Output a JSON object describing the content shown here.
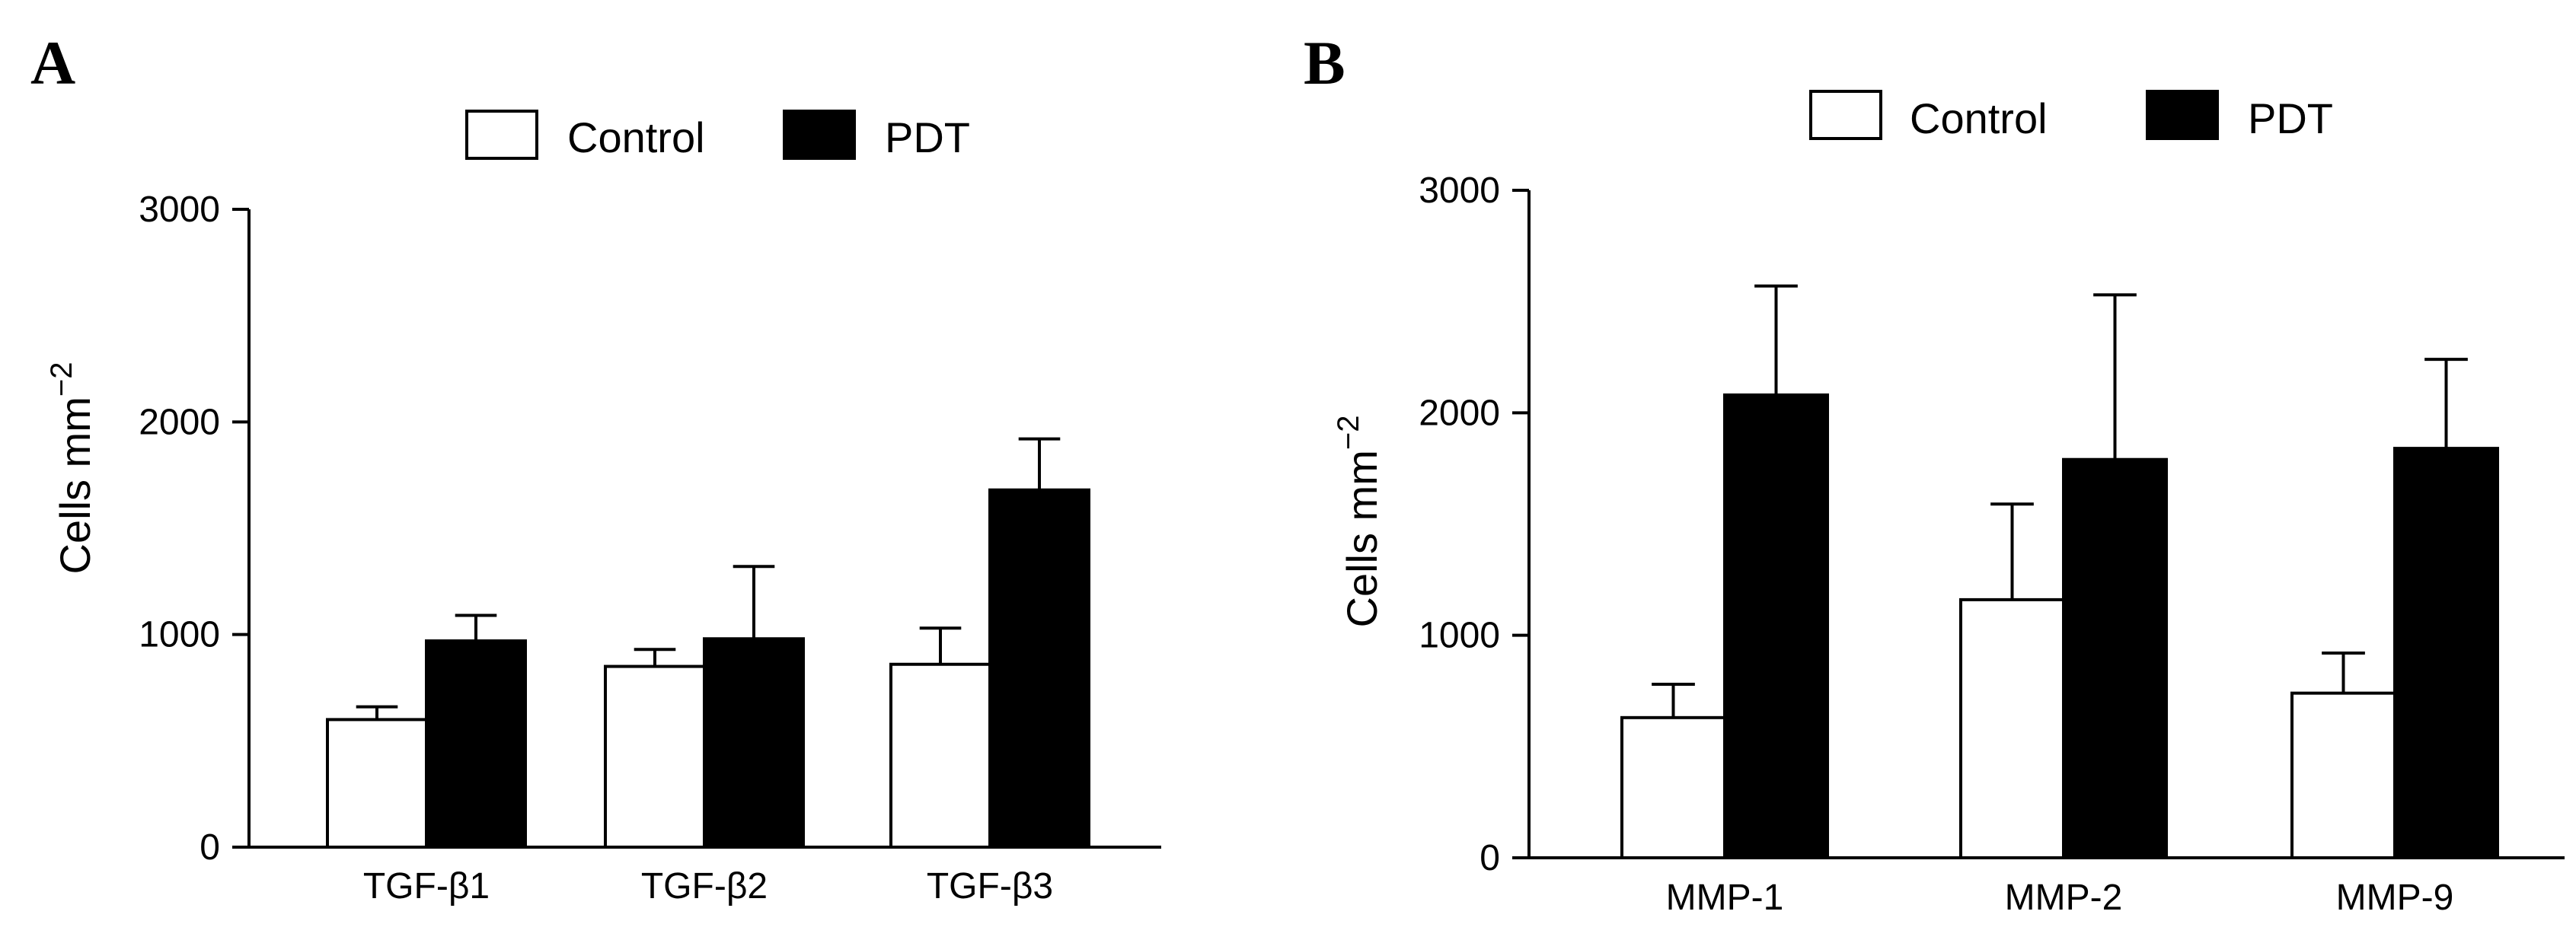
{
  "chart_data": [
    {
      "type": "bar",
      "panel_label": "A",
      "title": "",
      "xlabel": "",
      "ylabel": "Cells mm",
      "ylabel_superscript": "−2",
      "ylim": [
        0,
        3000
      ],
      "yticks": [
        "0",
        "1000",
        "2000",
        "3000"
      ],
      "ytick_values": [
        0,
        1000,
        2000,
        3000
      ],
      "categories": [
        "TGF-β1",
        "TGF-β2",
        "TGF-β3"
      ],
      "legend_position": "top-center",
      "series": [
        {
          "name": "Control",
          "color": "#ffffff",
          "values": [
            600,
            850,
            860
          ],
          "errors": [
            60,
            80,
            170
          ]
        },
        {
          "name": "PDT",
          "color": "#000000",
          "values": [
            970,
            980,
            1680
          ],
          "errors": [
            120,
            340,
            240
          ]
        }
      ]
    },
    {
      "type": "bar",
      "panel_label": "B",
      "title": "",
      "xlabel": "",
      "ylabel": "Cells mm",
      "ylabel_superscript": "−2",
      "ylim": [
        0,
        3000
      ],
      "yticks": [
        "0",
        "1000",
        "2000",
        "3000"
      ],
      "ytick_values": [
        0,
        1000,
        2000,
        3000
      ],
      "categories": [
        "MMP-1",
        "MMP-2",
        "MMP-9"
      ],
      "legend_position": "top-center",
      "series": [
        {
          "name": "Control",
          "color": "#ffffff",
          "values": [
            630,
            1160,
            740
          ],
          "errors": [
            150,
            430,
            180
          ]
        },
        {
          "name": "PDT",
          "color": "#000000",
          "values": [
            2080,
            1790,
            1840
          ],
          "errors": [
            490,
            740,
            400
          ]
        }
      ]
    }
  ]
}
